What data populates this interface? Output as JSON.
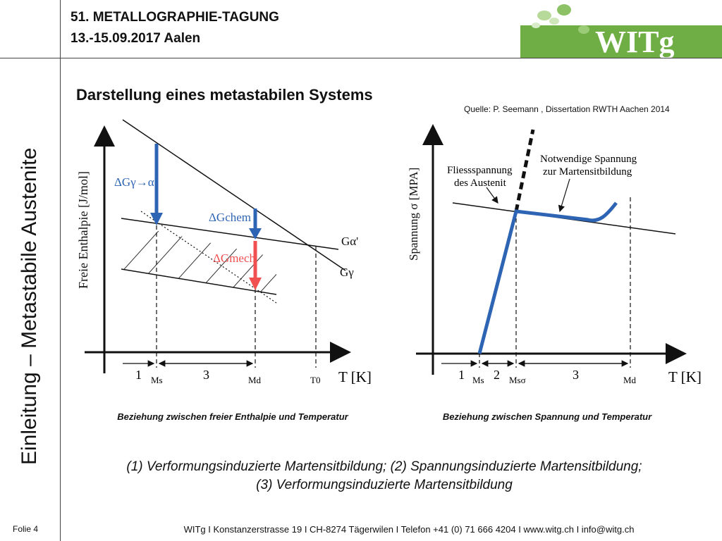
{
  "header": {
    "conference_title": "51. METALLOGRAPHIE-TAGUNG",
    "conference_date": "13.-15.09.2017  Aalen",
    "logo_text": "WITg"
  },
  "side_title": "Einleitung – Metastabile Austenite",
  "page_title": "Darstellung eines metastabilen Systems",
  "source": "Quelle: P. Seemann , Dissertation RWTH Aachen 2014",
  "figure_left": {
    "ylabel": "Freie Enthalpie [J/mol]",
    "xlabel": "T [K]",
    "label_dg_total": "ΔGγ→α'",
    "label_dg_chem": "ΔGchem",
    "label_dg_mech": "ΔGmech",
    "label_g_alpha": "Gα'",
    "label_g_gamma": "Gγ",
    "tick_ms": "Ms",
    "tick_md": "Md",
    "tick_t0": "T0",
    "region_1": "1",
    "region_3": "3",
    "colors": {
      "arrow_blue": "#2e64b4",
      "arrow_red": "#f05050"
    }
  },
  "figure_right": {
    "ylabel": "Spannung σ [MPA]",
    "xlabel": "T [K]",
    "label_yield_1": "Fliessspannung",
    "label_yield_2": "des Austenit",
    "label_needed_1": "Notwendige Spannung",
    "label_needed_2": "zur Martensitbildung",
    "tick_ms": "Ms",
    "tick_ms_sigma": "Msσ",
    "tick_md": "Md",
    "region_1": "1",
    "region_2": "2",
    "region_3": "3",
    "colors": {
      "curve_blue": "#2e64b4"
    }
  },
  "captions": {
    "left": "Beziehung zwischen freier Enthalpie und Temperatur",
    "right": "Beziehung zwischen Spannung und Temperatur"
  },
  "summary": {
    "line1": "(1) Verformungsinduzierte Martensitbildung; (2) Spannungsinduzierte Martensitbildung;",
    "line2": "(3) Verformungsinduzierte Martensitbildung"
  },
  "footer": {
    "slide_label": "Folie 4",
    "contact": "WITg   I   Konstanzerstrasse 19   I   CH-8274 Tägerwilen   I   Telefon +41 (0) 71 666 4204   I   www.witg.ch   I   info@witg.ch"
  }
}
